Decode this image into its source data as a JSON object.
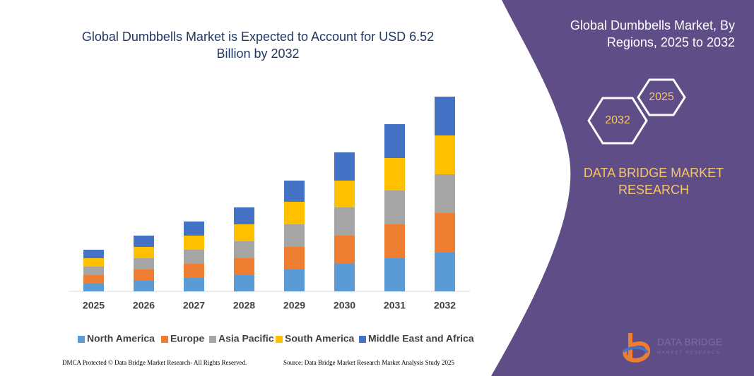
{
  "chart_data": {
    "type": "bar",
    "stacked": true,
    "title": "Global Dumbbells Market is Expected to Account for USD 6.52 Billion by 2032",
    "categories": [
      "2025",
      "2026",
      "2027",
      "2028",
      "2029",
      "2030",
      "2031",
      "2032"
    ],
    "ylim": [
      0,
      290
    ],
    "series": [
      {
        "name": "North America",
        "color": "#5b9bd5",
        "values": [
          11,
          15,
          19,
          23,
          31,
          39,
          47,
          55
        ]
      },
      {
        "name": "Europe",
        "color": "#ed7d31",
        "values": [
          12,
          16,
          20,
          24,
          32,
          40,
          48,
          56
        ]
      },
      {
        "name": "Asia Pacific",
        "color": "#a5a5a5",
        "values": [
          12,
          16,
          20,
          24,
          32,
          40,
          48,
          55
        ]
      },
      {
        "name": "South America",
        "color": "#ffc000",
        "values": [
          12,
          16,
          20,
          24,
          32,
          38,
          46,
          55
        ]
      },
      {
        "name": "Middle East and Africa",
        "color": "#4472c4",
        "values": [
          12,
          16,
          20,
          24,
          30,
          40,
          48,
          55
        ]
      }
    ]
  },
  "panel": {
    "title": "Global Dumbbells Market, By Regions, 2025 to 2032",
    "hex_large": "2032",
    "hex_small": "2025",
    "brand": "DATA BRIDGE MARKET RESEARCH"
  },
  "logo": {
    "name": "DATA BRIDGE",
    "tagline": "MARKET RESEARCH"
  },
  "footer": {
    "left": "DMCA Protected © Data Bridge Market Research- All Rights Reserved.",
    "right": "Source: Data Bridge Market Research Market Analysis Study 2025"
  }
}
